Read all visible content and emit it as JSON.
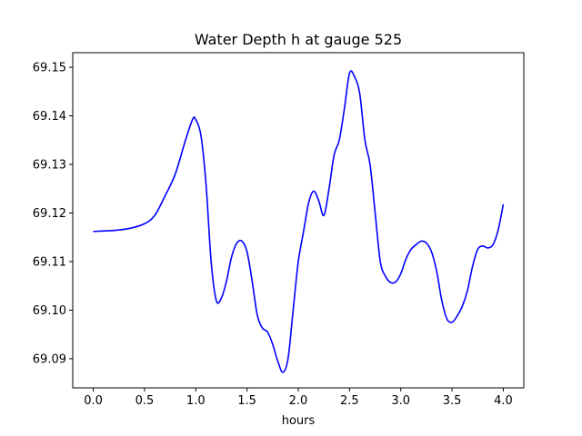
{
  "chart_data": {
    "type": "line",
    "title": "Water Depth h at gauge 525",
    "xlabel": "hours",
    "ylabel": "",
    "xlim": [
      -0.2,
      4.2
    ],
    "ylim": [
      69.084,
      69.153
    ],
    "xticks": [
      0.0,
      0.5,
      1.0,
      1.5,
      2.0,
      2.5,
      3.0,
      3.5,
      4.0
    ],
    "xtick_labels": [
      "0.0",
      "0.5",
      "1.0",
      "1.5",
      "2.0",
      "2.5",
      "3.0",
      "3.5",
      "4.0"
    ],
    "yticks": [
      69.09,
      69.1,
      69.11,
      69.12,
      69.13,
      69.14,
      69.15
    ],
    "ytick_labels": [
      "69.09",
      "69.10",
      "69.11",
      "69.12",
      "69.13",
      "69.14",
      "69.15"
    ],
    "grid": false,
    "legend": "none",
    "series": [
      {
        "color": "#0000ff",
        "x": [
          0.0,
          0.2,
          0.35,
          0.5,
          0.6,
          0.7,
          0.8,
          0.9,
          0.97,
          1.0,
          1.05,
          1.1,
          1.15,
          1.2,
          1.25,
          1.3,
          1.35,
          1.4,
          1.45,
          1.5,
          1.55,
          1.6,
          1.65,
          1.7,
          1.75,
          1.8,
          1.85,
          1.9,
          1.95,
          2.0,
          2.05,
          2.1,
          2.15,
          2.2,
          2.25,
          2.3,
          2.35,
          2.4,
          2.45,
          2.5,
          2.55,
          2.6,
          2.65,
          2.7,
          2.75,
          2.8,
          2.85,
          2.9,
          2.95,
          3.0,
          3.05,
          3.1,
          3.15,
          3.2,
          3.25,
          3.3,
          3.35,
          3.4,
          3.45,
          3.5,
          3.55,
          3.6,
          3.65,
          3.7,
          3.75,
          3.8,
          3.85,
          3.9,
          3.95,
          4.0
        ],
        "y": [
          69.1162,
          69.1164,
          69.1168,
          69.1178,
          69.1195,
          69.1235,
          69.128,
          69.135,
          69.1393,
          69.1392,
          69.136,
          69.126,
          69.11,
          69.102,
          69.1025,
          69.106,
          69.111,
          69.1138,
          69.1142,
          69.112,
          69.106,
          69.099,
          69.0963,
          69.0955,
          69.093,
          69.0895,
          69.0872,
          69.09,
          69.1,
          69.11,
          69.116,
          69.122,
          69.1245,
          69.1225,
          69.1195,
          69.125,
          69.132,
          69.135,
          69.1415,
          69.1488,
          69.148,
          69.1445,
          69.135,
          69.13,
          69.12,
          69.11,
          69.107,
          69.1057,
          69.1058,
          69.1075,
          69.1105,
          69.1125,
          69.1135,
          69.1142,
          69.1138,
          69.112,
          69.108,
          69.102,
          69.0982,
          69.0975,
          69.0988,
          69.1008,
          69.104,
          69.109,
          69.1125,
          69.1132,
          69.1128,
          69.1135,
          69.1165,
          69.1218
        ]
      }
    ]
  }
}
